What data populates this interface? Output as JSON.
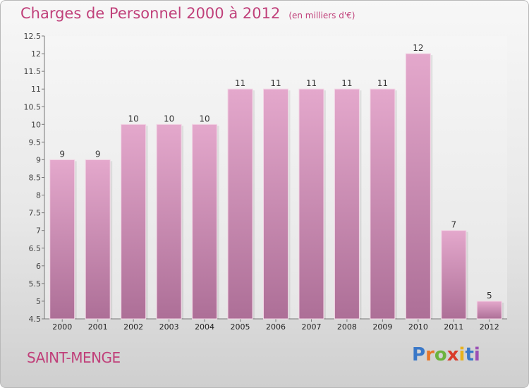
{
  "title": "Charges de Personnel 2000 à 2012",
  "unit_note": "(en milliers d'€)",
  "commune": "SAINT-MENGE",
  "logo": {
    "text": "Proxiti",
    "letter_colors": [
      "#3a78c8",
      "#e8762a",
      "#6cb33e",
      "#d93a2b",
      "#e8b21c",
      "#3a78c8",
      "#9b4fb5"
    ]
  },
  "colors": {
    "bar_top": "#e4a8cc",
    "bar_bottom": "#ad6f97",
    "title": "#c0407a"
  },
  "chart_data": {
    "type": "bar",
    "title": "Charges de Personnel 2000 à 2012",
    "subtitle": "(en milliers d'€)",
    "categories": [
      "2000",
      "2001",
      "2002",
      "2003",
      "2004",
      "2005",
      "2006",
      "2007",
      "2008",
      "2009",
      "2010",
      "2011",
      "2012"
    ],
    "values": [
      9,
      9,
      10,
      10,
      10,
      11,
      11,
      11,
      11,
      11,
      12,
      7,
      5
    ],
    "data_labels": [
      "9",
      "9",
      "10",
      "10",
      "10",
      "11",
      "11",
      "11",
      "11",
      "11",
      "12",
      "7",
      "5"
    ],
    "ylim": [
      4.5,
      12.5
    ],
    "yticks": [
      4.5,
      5,
      5.5,
      6,
      6.5,
      7,
      7.5,
      8,
      8.5,
      9,
      9.5,
      10,
      10.5,
      11,
      11.5,
      12,
      12.5
    ],
    "ytick_labels": [
      "4.5",
      "5",
      "5.5",
      "6",
      "6.5",
      "7",
      "7.5",
      "8",
      "8.5",
      "9",
      "9.5",
      "10",
      "10.5",
      "11",
      "11.5",
      "12",
      "12.5"
    ],
    "grid": false,
    "xlabel": "",
    "ylabel": ""
  }
}
